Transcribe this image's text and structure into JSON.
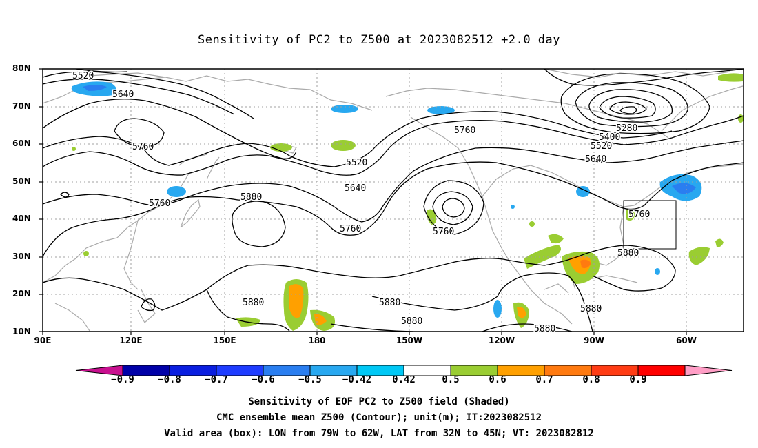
{
  "title": "Sensitivity of PC2 to Z500 at 2023082512 +2.0 day",
  "lat_labels": [
    "80N",
    "70N",
    "60N",
    "50N",
    "40N",
    "30N",
    "20N",
    "10N"
  ],
  "lon_labels": [
    "90E",
    "120E",
    "150E",
    "180",
    "150W",
    "120W",
    "90W",
    "60W"
  ],
  "contour_labels": [
    "5520",
    "5640",
    "5760",
    "5760",
    "5880",
    "5520",
    "5640",
    "5760",
    "5760",
    "5760",
    "5280",
    "5400",
    "5520",
    "5640",
    "5760",
    "5880",
    "5880",
    "5880",
    "5880",
    "5880",
    "5880"
  ],
  "colorbar": {
    "labels": [
      "−0.9",
      "−0.8",
      "−0.7",
      "−0.6",
      "−0.5",
      "−0.42",
      "0.42",
      "0.5",
      "0.6",
      "0.7",
      "0.8",
      "0.9"
    ],
    "colors": [
      "#c8108f",
      "#0000a8",
      "#0a1ee0",
      "#1e3cff",
      "#2a7ef0",
      "#28a8f0",
      "#00c8f5",
      "#ffffff",
      "#9acd32",
      "#ffa000",
      "#ff7a10",
      "#ff3c14",
      "#ff0000",
      "#ff9ec6"
    ]
  },
  "captions": [
    "Sensitivity of EOF PC2 to Z500 field (Shaded)",
    "CMC ensemble mean Z500 (Contour); unit(m); IT:2023082512",
    "Valid area (box): LON from 79W to 62W, LAT from 32N to 45N; VT: 2023082812"
  ],
  "colors": {
    "coastline": "#aaaaaa",
    "contour": "#000000",
    "grid": "#a0a0a0"
  }
}
